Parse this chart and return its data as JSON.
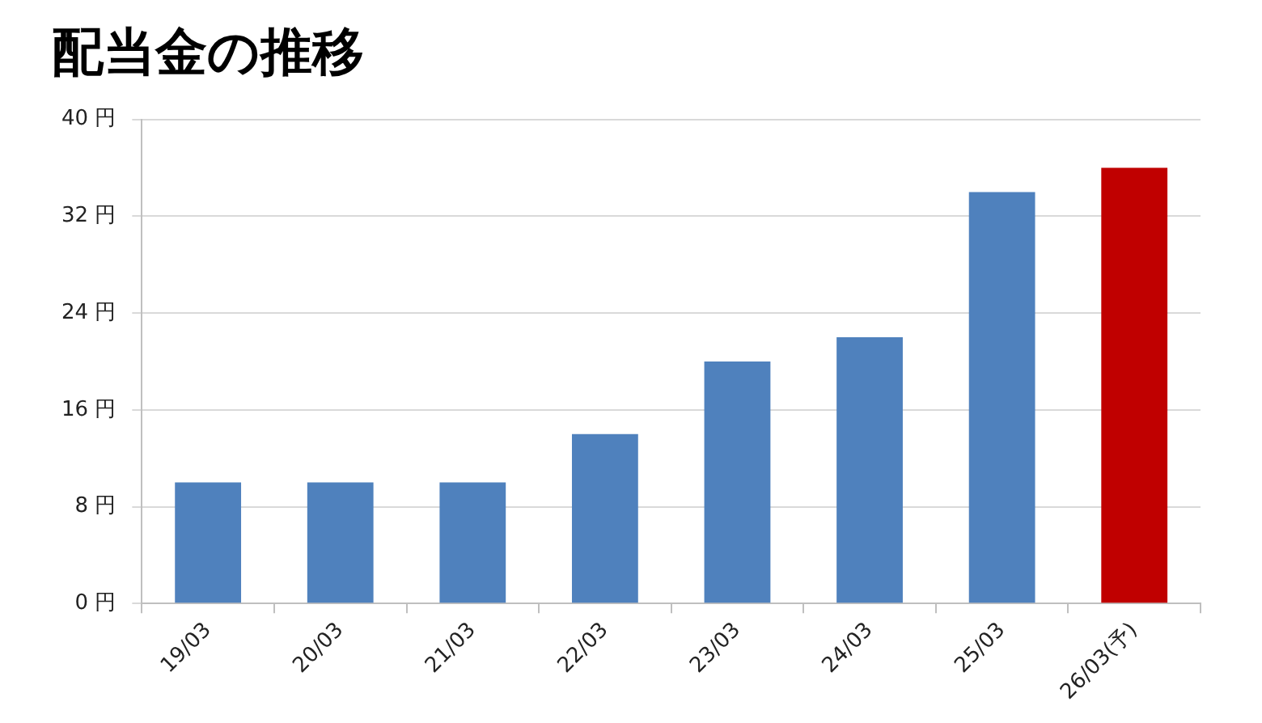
{
  "chart_data": {
    "type": "bar",
    "title": "配当金の推移",
    "categories": [
      "19/03",
      "20/03",
      "21/03",
      "22/03",
      "23/03",
      "24/03",
      "25/03",
      "26/03(予)"
    ],
    "values": [
      10,
      10,
      10,
      14,
      20,
      22,
      34,
      36
    ],
    "colors": [
      "#4f81bd",
      "#4f81bd",
      "#4f81bd",
      "#4f81bd",
      "#4f81bd",
      "#4f81bd",
      "#4f81bd",
      "#c00000"
    ],
    "ylim": [
      0,
      40
    ],
    "yticks": [
      {
        "value": 0,
        "label": "0 円"
      },
      {
        "value": 8,
        "label": "8 円"
      },
      {
        "value": 16,
        "label": "16 円"
      },
      {
        "value": 24,
        "label": "24 円"
      },
      {
        "value": 32,
        "label": "32 円"
      },
      {
        "value": 40,
        "label": "40 円"
      }
    ],
    "grid": "y",
    "legend": false
  }
}
